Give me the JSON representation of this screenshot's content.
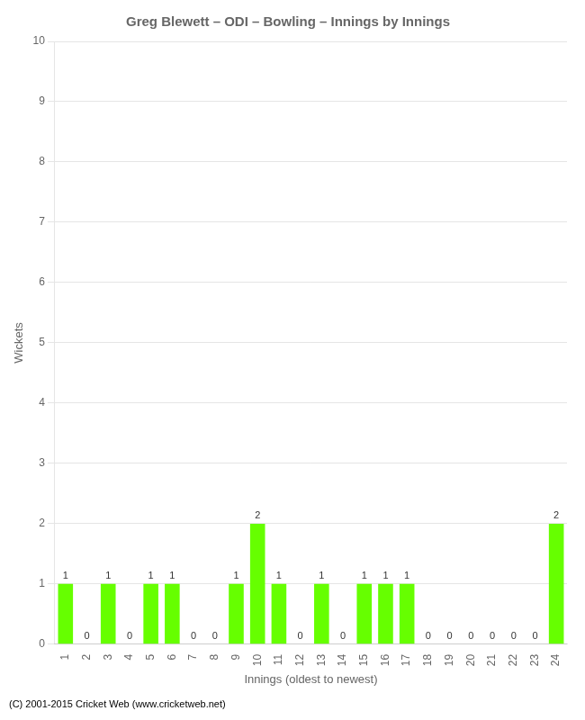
{
  "chart_data": {
    "type": "bar",
    "title": "Greg Blewett – ODI – Bowling – Innings by Innings",
    "x_label": "Innings (oldest to newest)",
    "y_label": "Wickets",
    "footer": "(C) 2001-2015 Cricket Web (www.cricketweb.net)",
    "categories": [
      "1",
      "2",
      "3",
      "4",
      "5",
      "6",
      "7",
      "8",
      "9",
      "10",
      "11",
      "12",
      "13",
      "14",
      "15",
      "16",
      "17",
      "18",
      "19",
      "20",
      "21",
      "22",
      "23",
      "24"
    ],
    "values": [
      1,
      0,
      1,
      0,
      1,
      1,
      0,
      0,
      1,
      2,
      1,
      0,
      1,
      0,
      1,
      1,
      1,
      0,
      0,
      0,
      0,
      0,
      0,
      2
    ],
    "color": "#66ff00",
    "ylim": [
      0,
      10
    ],
    "yticks": [
      0,
      1,
      2,
      3,
      4,
      5,
      6,
      7,
      8,
      9,
      10
    ],
    "grid": true,
    "data_labels": true
  }
}
